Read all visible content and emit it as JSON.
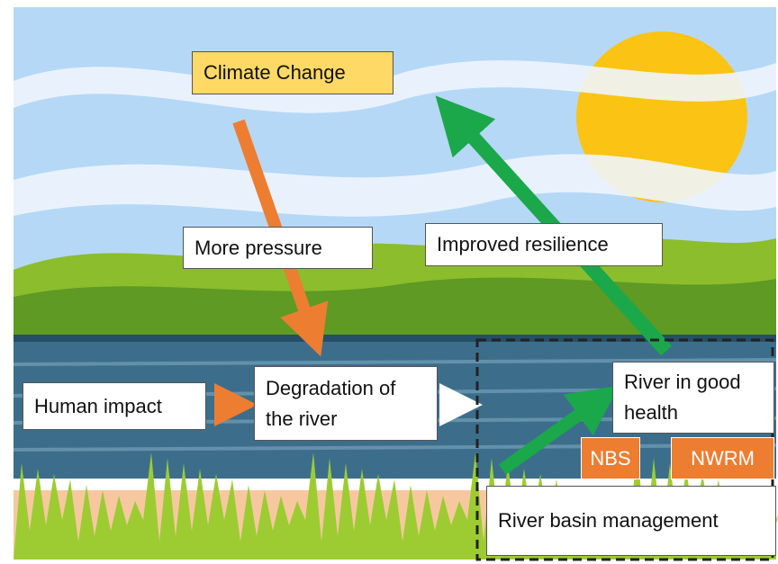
{
  "nodes": [
    {
      "label": "Climate Change"
    },
    {
      "label": "More pressure"
    },
    {
      "label": "Improved resilience"
    },
    {
      "label": "Human impact"
    },
    {
      "label": "Degradation of the river"
    },
    {
      "label": "River in good health"
    },
    {
      "label": "NBS"
    },
    {
      "label": "NWRM"
    },
    {
      "label": "River basin management"
    }
  ]
}
